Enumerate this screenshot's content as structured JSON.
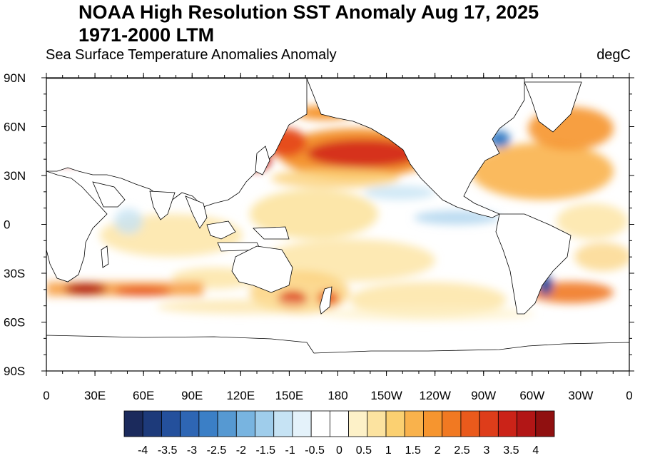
{
  "title": "NOAA High Resolution SST Anomaly Aug 17, 2025",
  "title_line2": "1971-2000 LTM",
  "subtitle_left": "Sea Surface Temperature Anomalies Anomaly",
  "subtitle_right": "degC",
  "lat_labels": [
    "90N",
    "60N",
    "30N",
    "0",
    "30S",
    "60S",
    "90S"
  ],
  "lon_labels": [
    "0",
    "30E",
    "60E",
    "90E",
    "120E",
    "150E",
    "180",
    "150W",
    "120W",
    "90W",
    "60W",
    "30W",
    "0"
  ],
  "colorbar": {
    "labels": [
      "-4",
      "-3.5",
      "-3",
      "-2.5",
      "-2",
      "-1.5",
      "-1",
      "-0.5",
      "0",
      "0.5",
      "1",
      "1.5",
      "2",
      "2.5",
      "3",
      "3.5",
      "4"
    ],
    "colors": [
      "#1b2a5c",
      "#1d3a7a",
      "#24509c",
      "#2e66b4",
      "#3b7fc6",
      "#5699d2",
      "#78b4e0",
      "#9fcdeb",
      "#c6e3f4",
      "#e4f2fa",
      "#ffffff",
      "#ffffff",
      "#fdf1c8",
      "#fce3a0",
      "#fbd071",
      "#f9b24c",
      "#f6952f",
      "#f17922",
      "#ea5a1c",
      "#de3d1a",
      "#cb2318",
      "#b21616",
      "#901010"
    ]
  }
}
